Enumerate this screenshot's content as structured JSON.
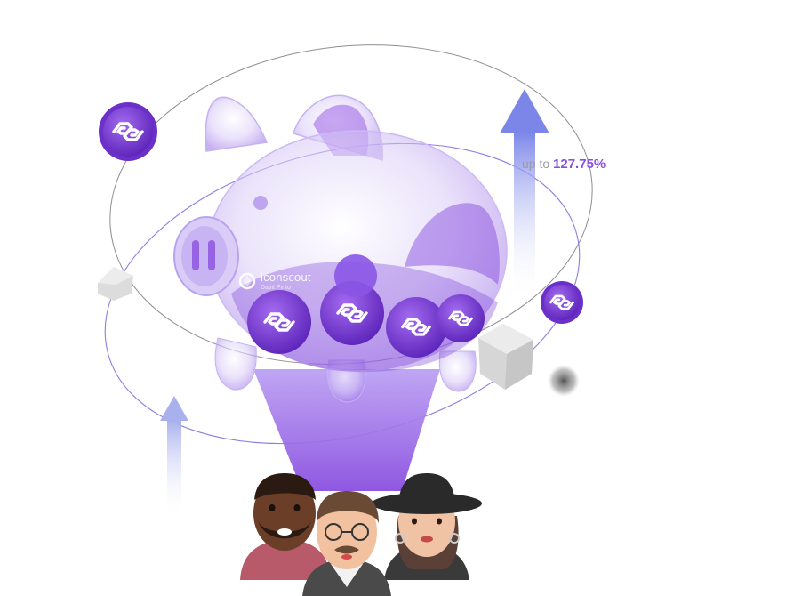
{
  "hero": {
    "yield_prefix": "up to",
    "yield_value": "127.75%"
  },
  "watermark": {
    "brand": "iconscout",
    "author": "Davit Pinto"
  },
  "colors": {
    "accent": "#8a4fe0",
    "funnel": "#a07ae8",
    "arrow": "#7b86e8",
    "coin": "#7a3fd9"
  },
  "icons": [
    "polygon-coin-icon",
    "glass-piggy-bank",
    "arrow-up-icon",
    "cube-icon"
  ]
}
